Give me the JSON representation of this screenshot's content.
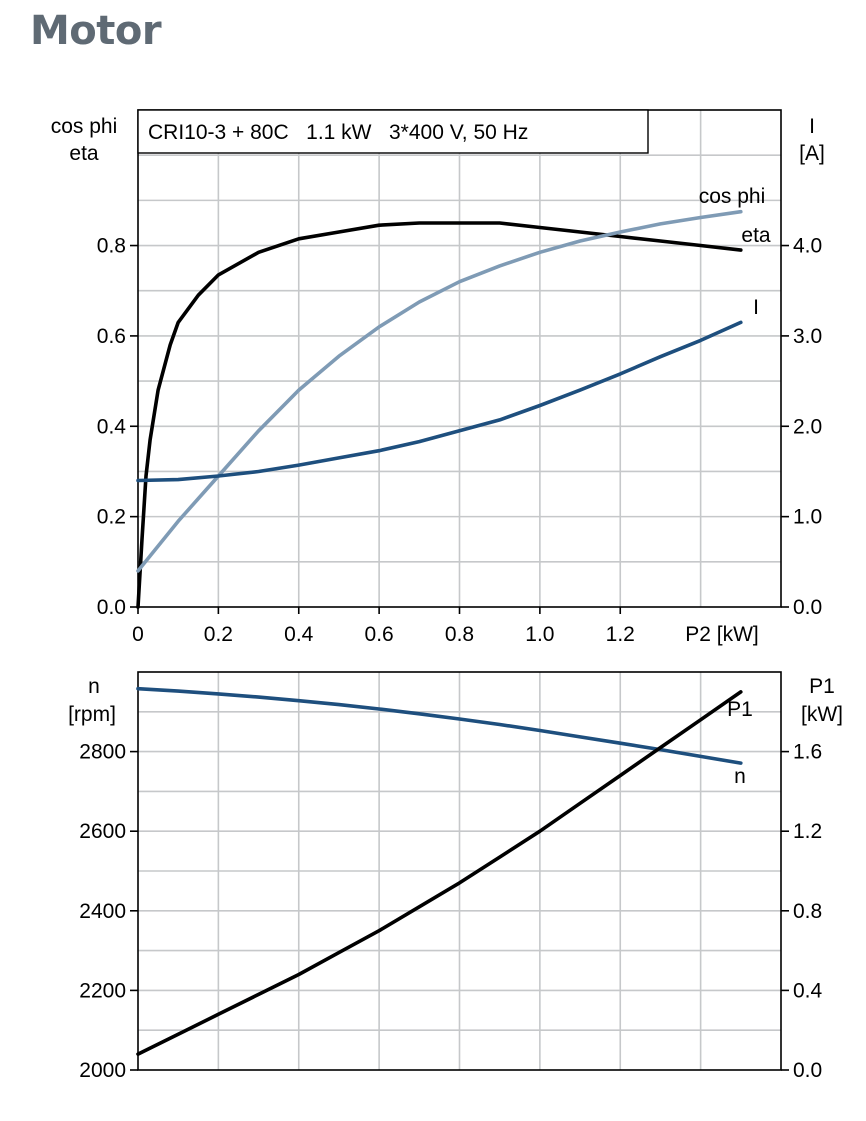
{
  "page": {
    "title": "Motor"
  },
  "colors": {
    "title": "#5f6a74",
    "grid": "#c6c8ca",
    "eta": "#000000",
    "cos_phi": "#7f9bb5",
    "current": "#1e4f7e",
    "speed": "#1e4f7e",
    "p1": "#000000"
  },
  "chart_data": [
    {
      "type": "line",
      "title": "CRI10-3 + 80C   1.1 kW   3*400 V, 50 Hz",
      "xlabel": "P2 [kW]",
      "xlim": [
        0,
        1.6
      ],
      "x_ticks": [
        "0",
        "0.2",
        "0.4",
        "0.6",
        "0.8",
        "1.0",
        "1.2"
      ],
      "y_left": {
        "label_line1": "cos phi",
        "label_line2": "eta",
        "lim": [
          0,
          1.1
        ],
        "ticks": [
          "0.0",
          "0.2",
          "0.4",
          "0.6",
          "0.8"
        ]
      },
      "y_right": {
        "label_line1": "I",
        "label_line2": "[A]",
        "lim": [
          0,
          5.5
        ],
        "ticks": [
          "0.0",
          "1.0",
          "2.0",
          "3.0",
          "4.0"
        ]
      },
      "grid": true,
      "series": [
        {
          "name": "eta",
          "axis": "left",
          "color": "#000000",
          "x": [
            0,
            0.01,
            0.02,
            0.03,
            0.05,
            0.08,
            0.1,
            0.15,
            0.2,
            0.3,
            0.4,
            0.5,
            0.6,
            0.7,
            0.8,
            0.9,
            1.0,
            1.1,
            1.2,
            1.3,
            1.4,
            1.5
          ],
          "y": [
            0,
            0.15,
            0.29,
            0.37,
            0.48,
            0.58,
            0.63,
            0.69,
            0.735,
            0.785,
            0.815,
            0.83,
            0.845,
            0.85,
            0.85,
            0.85,
            0.84,
            0.83,
            0.82,
            0.81,
            0.8,
            0.79
          ]
        },
        {
          "name": "cos phi",
          "axis": "left",
          "color": "#7f9bb5",
          "x": [
            0,
            0.1,
            0.2,
            0.3,
            0.4,
            0.5,
            0.6,
            0.7,
            0.8,
            0.9,
            1.0,
            1.1,
            1.2,
            1.3,
            1.4,
            1.5
          ],
          "y": [
            0.08,
            0.19,
            0.29,
            0.39,
            0.48,
            0.555,
            0.62,
            0.675,
            0.72,
            0.755,
            0.785,
            0.81,
            0.83,
            0.848,
            0.862,
            0.875
          ]
        },
        {
          "name": "I",
          "axis": "right",
          "color": "#1e4f7e",
          "x": [
            0,
            0.1,
            0.2,
            0.3,
            0.4,
            0.5,
            0.6,
            0.7,
            0.8,
            0.9,
            1.0,
            1.1,
            1.2,
            1.3,
            1.4,
            1.5
          ],
          "y": [
            1.4,
            1.41,
            1.45,
            1.5,
            1.57,
            1.65,
            1.73,
            1.83,
            1.95,
            2.07,
            2.23,
            2.4,
            2.58,
            2.77,
            2.95,
            3.15
          ]
        }
      ],
      "series_labels": [
        "eta",
        "cos phi",
        "I"
      ]
    },
    {
      "type": "line",
      "xlabel": "",
      "xlim": [
        0,
        1.6
      ],
      "y_left": {
        "label_line1": "n",
        "label_line2": "[rpm]",
        "lim": [
          2000,
          3000
        ],
        "ticks": [
          "2000",
          "2200",
          "2400",
          "2600",
          "2800"
        ]
      },
      "y_right": {
        "label_line1": "P1",
        "label_line2": "[kW]",
        "lim": [
          0,
          2.0
        ],
        "ticks": [
          "0.0",
          "0.4",
          "0.8",
          "1.2",
          "1.6"
        ]
      },
      "grid": true,
      "series": [
        {
          "name": "n",
          "axis": "left",
          "color": "#1e4f7e",
          "x": [
            0,
            0.1,
            0.2,
            0.3,
            0.4,
            0.5,
            0.6,
            0.7,
            0.8,
            0.9,
            1.0,
            1.1,
            1.2,
            1.3,
            1.4,
            1.5
          ],
          "y": [
            2958,
            2952,
            2945,
            2937,
            2928,
            2918,
            2907,
            2895,
            2882,
            2868,
            2853,
            2837,
            2821,
            2805,
            2788,
            2771
          ]
        },
        {
          "name": "P1",
          "axis": "right",
          "color": "#000000",
          "x": [
            0,
            0.1,
            0.2,
            0.3,
            0.4,
            0.5,
            0.6,
            0.7,
            0.8,
            0.9,
            1.0,
            1.1,
            1.2,
            1.3,
            1.4,
            1.5
          ],
          "y": [
            0.08,
            0.18,
            0.28,
            0.38,
            0.48,
            0.59,
            0.7,
            0.82,
            0.94,
            1.07,
            1.2,
            1.34,
            1.48,
            1.62,
            1.76,
            1.9
          ]
        }
      ],
      "series_labels": [
        "P1",
        "n"
      ]
    }
  ]
}
